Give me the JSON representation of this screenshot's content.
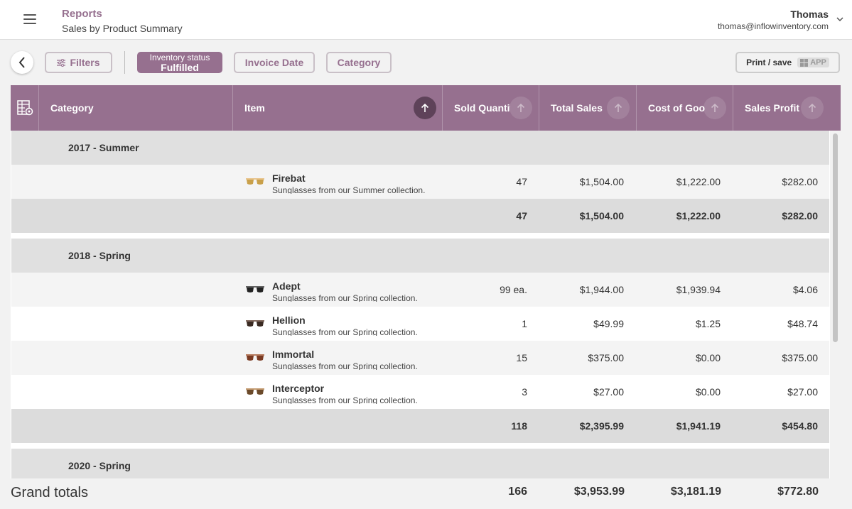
{
  "header": {
    "title": "Reports",
    "subtitle": "Sales by Product Summary",
    "user_name": "Thomas",
    "user_email": "thomas@inflowinventory.com"
  },
  "toolbar": {
    "filters_label": "Filters",
    "status_chip": {
      "label": "Inventory status",
      "value": "Fulfilled"
    },
    "invoice_date_label": "Invoice Date",
    "category_label": "Category",
    "print_label": "Print / save",
    "app_badge": "APP"
  },
  "columns": [
    "Category",
    "Item",
    "Sold Quantity",
    "Total Sales",
    "Cost of Goods",
    "Sales Profit"
  ],
  "groups": [
    {
      "name": "2017 - Summer",
      "items": [
        {
          "name": "Firebat",
          "desc": "Sunglasses from our Summer collection.",
          "qty": "47",
          "sales": "$1,504.00",
          "cost": "$1,222.00",
          "profit": "$282.00",
          "lens": "#c9a04a",
          "frame": "#e3b36b"
        }
      ],
      "subtotal": {
        "qty": "47",
        "sales": "$1,504.00",
        "cost": "$1,222.00",
        "profit": "$282.00"
      }
    },
    {
      "name": "2018 - Spring",
      "items": [
        {
          "name": "Adept",
          "desc": "Sunglasses from our Spring collection.",
          "qty": "99 ea.",
          "sales": "$1,944.00",
          "cost": "$1,939.94",
          "profit": "$4.06",
          "lens": "#222222",
          "frame": "#333333"
        },
        {
          "name": "Hellion",
          "desc": "Sunglasses from our Spring collection.",
          "qty": "1",
          "sales": "$49.99",
          "cost": "$1.25",
          "profit": "$48.74",
          "lens": "#3a2a22",
          "frame": "#5a3a2a"
        },
        {
          "name": "Immortal",
          "desc": "Sunglasses from our Spring collection.",
          "qty": "15",
          "sales": "$375.00",
          "cost": "$0.00",
          "profit": "$375.00",
          "lens": "#7a3a22",
          "frame": "#a0522d"
        },
        {
          "name": "Interceptor",
          "desc": "Sunglasses from our Spring collection.",
          "qty": "3",
          "sales": "$27.00",
          "cost": "$0.00",
          "profit": "$27.00",
          "lens": "#6b4a2a",
          "frame": "#b07a40"
        }
      ],
      "subtotal": {
        "qty": "118",
        "sales": "$2,395.99",
        "cost": "$1,941.19",
        "profit": "$454.80"
      }
    },
    {
      "name": "2020 - Spring",
      "items": [],
      "subtotal": null
    }
  ],
  "grand_totals": {
    "label": "Grand totals",
    "qty": "166",
    "sales": "$3,953.99",
    "cost": "$3,181.19",
    "profit": "$772.80"
  }
}
